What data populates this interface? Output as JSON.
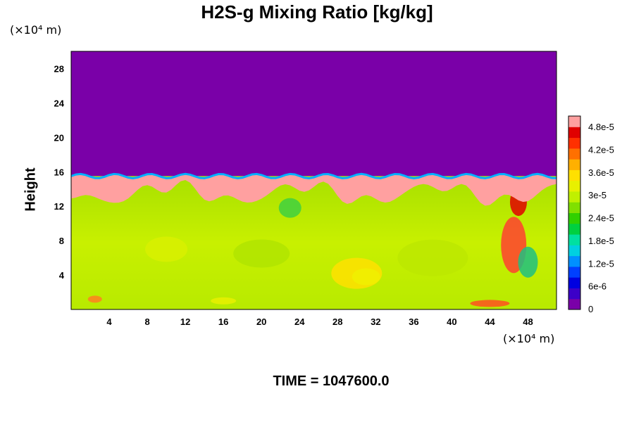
{
  "chart_data": {
    "type": "heatmap",
    "title": "H2S-g Mixing Ratio [kg/kg]",
    "ylabel": "Height",
    "x_unit": "(×10⁴ m)",
    "y_unit": "(×10⁴ m)",
    "x_ticks": [
      4,
      8,
      12,
      16,
      20,
      24,
      28,
      32,
      36,
      40,
      44,
      48
    ],
    "y_ticks": [
      4,
      8,
      12,
      16,
      20,
      24,
      28
    ],
    "xlim": [
      0,
      51
    ],
    "ylim": [
      0,
      30
    ],
    "colorbar": {
      "ticks": [
        "0",
        "6e-6",
        "1.2e-5",
        "1.8e-5",
        "2.4e-5",
        "3e-5",
        "3.6e-5",
        "4.2e-5",
        "4.8e-5"
      ],
      "min": 0,
      "max": 5.1e-05,
      "colors": [
        "#7a00a8",
        "#3c00c8",
        "#0000e0",
        "#0040ff",
        "#0090ff",
        "#00d0e0",
        "#00e0a0",
        "#00d040",
        "#30d000",
        "#80e000",
        "#c0f000",
        "#e8f000",
        "#ffe000",
        "#ffb000",
        "#ff7000",
        "#ff3000",
        "#e00000",
        "#ffa0a0"
      ]
    },
    "regions": {
      "upper_value": 0,
      "interface_height": 15.5,
      "interface_value": 5.1e-05,
      "lower_value": 3.2e-05
    }
  },
  "footer": {
    "time_label": "TIME = 1047600.0"
  }
}
